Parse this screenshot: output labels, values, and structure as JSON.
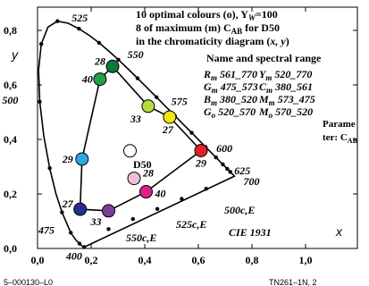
{
  "chart_data": {
    "type": "scatter",
    "x_tick_labels": [
      "0,0",
      "0,2",
      "0,4",
      "0,6",
      "0,8",
      "1,0"
    ],
    "y_tick_labels": [
      "0,0",
      "0,2",
      "0,4",
      "0,6",
      "0,8"
    ],
    "xlabel": "x",
    "ylabel": "y",
    "xlim": [
      0,
      1.05
    ],
    "ylim": [
      0,
      0.85
    ],
    "header_lines": [
      "10 optimal colours (o), Y",
      "W",
      "=100",
      "8 of maximum (m) C",
      "AB",
      " for D50",
      "in the chromaticity diagram (",
      "x, y",
      ")"
    ],
    "name_range_title": "Name and spectral range",
    "name_ranges": [
      {
        "code": "R",
        "sub": "m",
        "range": "561_770"
      },
      {
        "code": "Y",
        "sub": "m",
        "range": "520_770"
      },
      {
        "code": "G",
        "sub": "m",
        "range": "475_573"
      },
      {
        "code": "C",
        "sub": "m",
        "range": "380_561"
      },
      {
        "code": "B",
        "sub": "m",
        "range": "380_520"
      },
      {
        "code": "M",
        "sub": "m",
        "range": "573_475"
      },
      {
        "code": "G",
        "sub": "o",
        "range": "520_570"
      },
      {
        "code": "M",
        "sub": "o",
        "range": "570_520"
      }
    ],
    "param_text": [
      "Parame",
      "ter: C",
      "AB"
    ],
    "cie_label": "CIE 1931",
    "white_label": "D50",
    "locus_labels": [
      {
        "text": "525",
        "x": 0.114,
        "y": 0.826
      },
      {
        "text": "550",
        "x": 0.302,
        "y": 0.692
      },
      {
        "text": "575",
        "x": 0.479,
        "y": 0.52
      },
      {
        "text": "600",
        "x": 0.627,
        "y": 0.373
      },
      {
        "text": "625",
        "x": 0.701,
        "y": 0.299
      },
      {
        "text": "700",
        "x": 0.735,
        "y": 0.265
      },
      {
        "text": "500",
        "x": 0.008,
        "y": 0.538
      },
      {
        "text": "475",
        "x": 0.11,
        "y": 0.087
      },
      {
        "text": "400",
        "x": 0.173,
        "y": 0.005
      }
    ],
    "purple_line_labels": [
      "500c,E",
      "525c,E",
      "550c,E"
    ],
    "points": [
      {
        "label": "28",
        "x": 0.28,
        "y": 0.668,
        "color": "#0b7a3a"
      },
      {
        "label": "40",
        "x": 0.233,
        "y": 0.621,
        "color": "#23a04a"
      },
      {
        "label": "33",
        "x": 0.413,
        "y": 0.522,
        "color": "#b6dc3c"
      },
      {
        "label": "27",
        "x": 0.493,
        "y": 0.482,
        "color": "#f4e510"
      },
      {
        "label": "29",
        "x": 0.61,
        "y": 0.359,
        "color": "#e5202a"
      },
      {
        "label": "29",
        "x": 0.166,
        "y": 0.328,
        "color": "#2aa8e6"
      },
      {
        "label": "27",
        "x": 0.159,
        "y": 0.144,
        "color": "#2a2f8c"
      },
      {
        "label": "33",
        "x": 0.265,
        "y": 0.138,
        "color": "#7b3d9b"
      },
      {
        "label": "40",
        "x": 0.405,
        "y": 0.208,
        "color": "#de1f8c"
      },
      {
        "label": "28",
        "x": 0.36,
        "y": 0.257,
        "color": "#f2bcd2"
      },
      {
        "label": "",
        "x": 0.345,
        "y": 0.358,
        "color": "#ffffff"
      }
    ],
    "colors": {
      "locus": "#000000",
      "outline": "#000000"
    }
  },
  "footer": {
    "left": "5–000130–L0",
    "right": "TN261–1N, 2"
  }
}
